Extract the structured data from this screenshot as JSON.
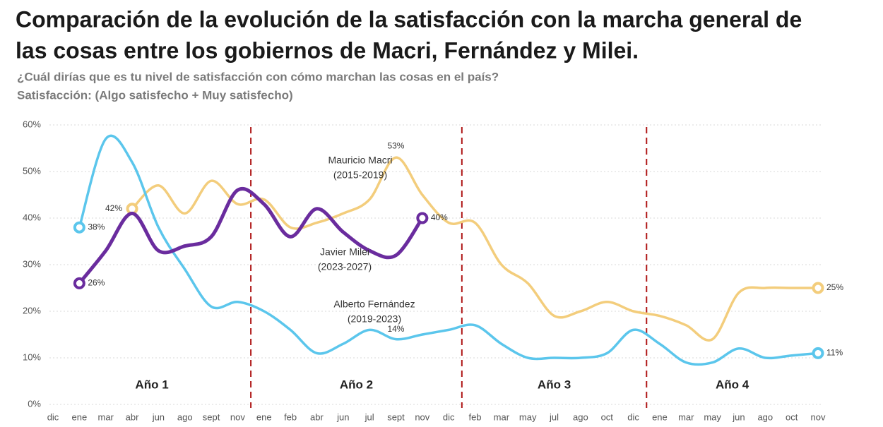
{
  "chart_data": {
    "type": "line",
    "title": [
      "Comparación de la evolución de la satisfacción con la marcha general de",
      "las cosas entre los gobiernos de Macri, Fernández y Milei."
    ],
    "subtitle": [
      "¿Cuál dirías que es tu nivel de satisfacción con cómo marchan las cosas en el país?",
      "Satisfacción: (Algo satisfecho + Muy satisfecho)"
    ],
    "categories": [
      "dic",
      "ene",
      "mar",
      "abr",
      "jun",
      "ago",
      "sept",
      "nov",
      "ene",
      "feb",
      "abr",
      "jun",
      "jul",
      "sept",
      "nov",
      "dic",
      "feb",
      "mar",
      "may",
      "jul",
      "ago",
      "oct",
      "dic",
      "ene",
      "mar",
      "may",
      "jun",
      "ago",
      "oct",
      "nov"
    ],
    "periods": [
      "Año 1",
      "Año 2",
      "Año 3",
      "Año 4"
    ],
    "ylim": [
      0,
      60
    ],
    "yticks": [
      {
        "value": 0,
        "label": "0%"
      },
      {
        "value": 10,
        "label": "10%"
      },
      {
        "value": 20,
        "label": "20%"
      },
      {
        "value": 30,
        "label": "30%"
      },
      {
        "value": 40,
        "label": "40%"
      },
      {
        "value": 50,
        "label": "50%"
      },
      {
        "value": 60,
        "label": "60%"
      }
    ],
    "grid": true,
    "series": [
      {
        "name": "Mauricio Macri",
        "period": "(2015-2019)",
        "color": "#f3cd7c",
        "values": [
          null,
          null,
          null,
          42,
          47,
          41,
          48,
          43,
          44,
          38,
          39,
          41,
          44,
          53,
          45,
          39,
          39,
          30,
          26,
          19,
          20,
          22,
          20,
          19,
          17,
          14,
          24,
          25,
          25,
          25
        ],
        "value_labels": [
          null,
          null,
          null,
          "42%",
          null,
          null,
          null,
          null,
          null,
          null,
          null,
          null,
          null,
          "53%",
          null,
          null,
          null,
          null,
          null,
          null,
          null,
          null,
          null,
          null,
          null,
          null,
          null,
          null,
          null,
          "25%"
        ]
      },
      {
        "name": "Alberto Fernández",
        "period": "(2019-2023)",
        "color": "#5bc6ec",
        "values": [
          null,
          38,
          57,
          52,
          38,
          29,
          21,
          22,
          20,
          16,
          11,
          13,
          16,
          14,
          15,
          16,
          17,
          13,
          10,
          10,
          10,
          11,
          16,
          13,
          9,
          9,
          12,
          10,
          10.5,
          11
        ],
        "value_labels": [
          null,
          "38%",
          null,
          null,
          null,
          null,
          null,
          null,
          null,
          null,
          null,
          null,
          null,
          "14%",
          null,
          null,
          null,
          null,
          null,
          null,
          null,
          null,
          null,
          null,
          null,
          null,
          null,
          null,
          null,
          "11%"
        ]
      },
      {
        "name": "Javier Milei",
        "period": "(2023-2027)",
        "color": "#6a2c9e",
        "values": [
          null,
          26,
          33,
          41,
          33,
          34,
          36,
          46,
          43,
          36,
          42,
          37,
          33,
          32,
          40,
          null,
          null,
          null,
          null,
          null,
          null,
          null,
          null,
          null,
          null,
          null,
          null,
          null,
          null,
          null
        ],
        "value_labels": [
          null,
          "26%",
          null,
          null,
          null,
          null,
          null,
          null,
          null,
          null,
          null,
          null,
          null,
          null,
          "40%",
          null,
          null,
          null,
          null,
          null,
          null,
          null,
          null,
          null,
          null,
          null,
          null,
          null,
          null,
          null
        ]
      }
    ]
  }
}
